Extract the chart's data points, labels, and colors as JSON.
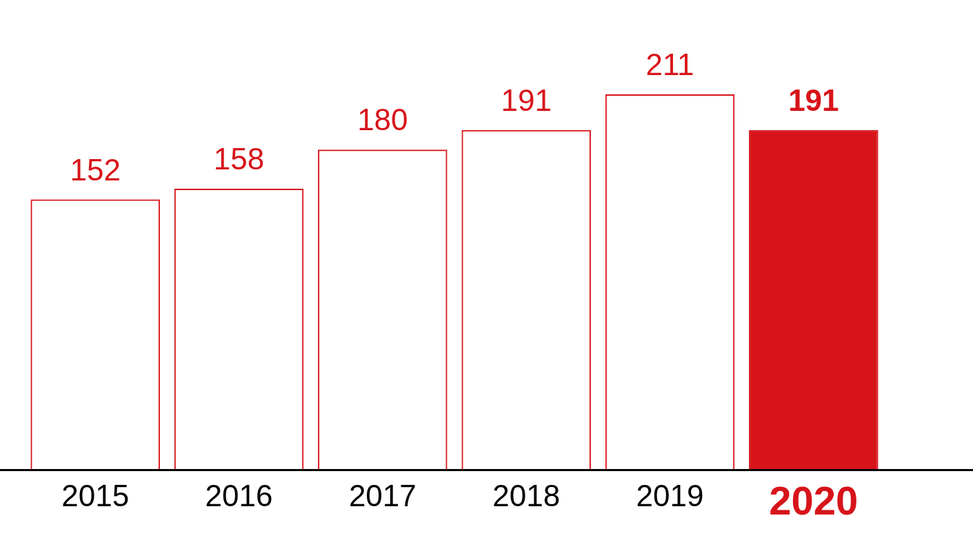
{
  "chart_data": {
    "type": "bar",
    "categories": [
      "2015",
      "2016",
      "2017",
      "2018",
      "2019",
      "2020"
    ],
    "values": [
      152,
      158,
      180,
      191,
      211,
      191
    ],
    "color": "#d7141a",
    "colors": [
      "#d7141a",
      "#d7141a",
      "#d7141a",
      "#d7141a",
      "#d7141a",
      "#d7141a"
    ],
    "data_labels": true
  }
}
